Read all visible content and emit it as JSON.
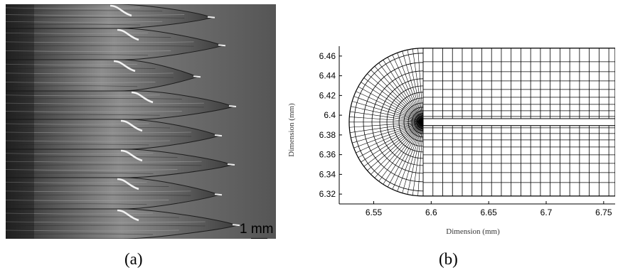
{
  "panel_a": {
    "caption": "(a)",
    "scale_bar_label": "1 mm"
  },
  "panel_b": {
    "caption": "(b)",
    "xlabel": "Dimension (mm)",
    "ylabel": "Dimension (mm)",
    "x_ticks": [
      "6.55",
      "6.6",
      "6.65",
      "6.7",
      "6.75"
    ],
    "y_ticks": [
      "6.46",
      "6.44",
      "6.42",
      "6.4",
      "6.38",
      "6.36",
      "6.34",
      "6.32"
    ]
  },
  "chart_data": {
    "type": "mesh",
    "xlabel": "Dimension (mm)",
    "ylabel": "Dimension (mm)",
    "xlim": [
      6.52,
      6.76
    ],
    "ylim": [
      6.31,
      6.47
    ],
    "x_ticks": [
      6.55,
      6.6,
      6.65,
      6.7,
      6.75
    ],
    "y_ticks": [
      6.32,
      6.34,
      6.36,
      6.38,
      6.4,
      6.42,
      6.44,
      6.46
    ],
    "notch": {
      "tip_x": 6.593,
      "center_y": 6.393,
      "half_width": 0.0035,
      "outer_radius": 0.075
    },
    "colors": {
      "mesh_line": "#000000"
    }
  }
}
